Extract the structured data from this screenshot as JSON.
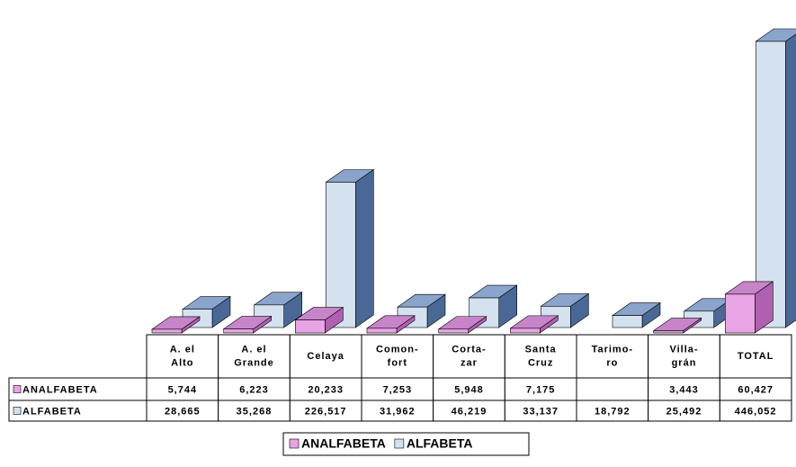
{
  "chart_data": {
    "type": "bar3d",
    "categories": [
      [
        "A. el",
        "Alto"
      ],
      [
        "A. el",
        "Grande"
      ],
      [
        "Celaya"
      ],
      [
        "Comon-",
        "fort"
      ],
      [
        "Corta-",
        "zar"
      ],
      [
        "Santa",
        "Cruz"
      ],
      [
        "Tarimo-",
        "ro"
      ],
      [
        "Villa-",
        "grán"
      ],
      [
        "TOTAL"
      ]
    ],
    "series": [
      {
        "name": "ANALFABETA",
        "color": "#e8a4e4",
        "values": [
          5744,
          6223,
          20233,
          7253,
          5948,
          7175,
          null,
          3443,
          60427
        ],
        "value_labels": [
          "5,744",
          "6,223",
          "20,233",
          "7,253",
          "5,948",
          "7,175",
          null,
          "3,443",
          "60,427"
        ]
      },
      {
        "name": "ALFABETA",
        "color": "#d4e2f0",
        "values": [
          28665,
          35268,
          226517,
          31962,
          46219,
          33137,
          18792,
          25492,
          446052
        ],
        "value_labels": [
          "28,665",
          "35,268",
          "226,517",
          "31,962",
          "46,219",
          "33,137",
          "18,792",
          "25,492",
          "446,052"
        ]
      }
    ]
  }
}
